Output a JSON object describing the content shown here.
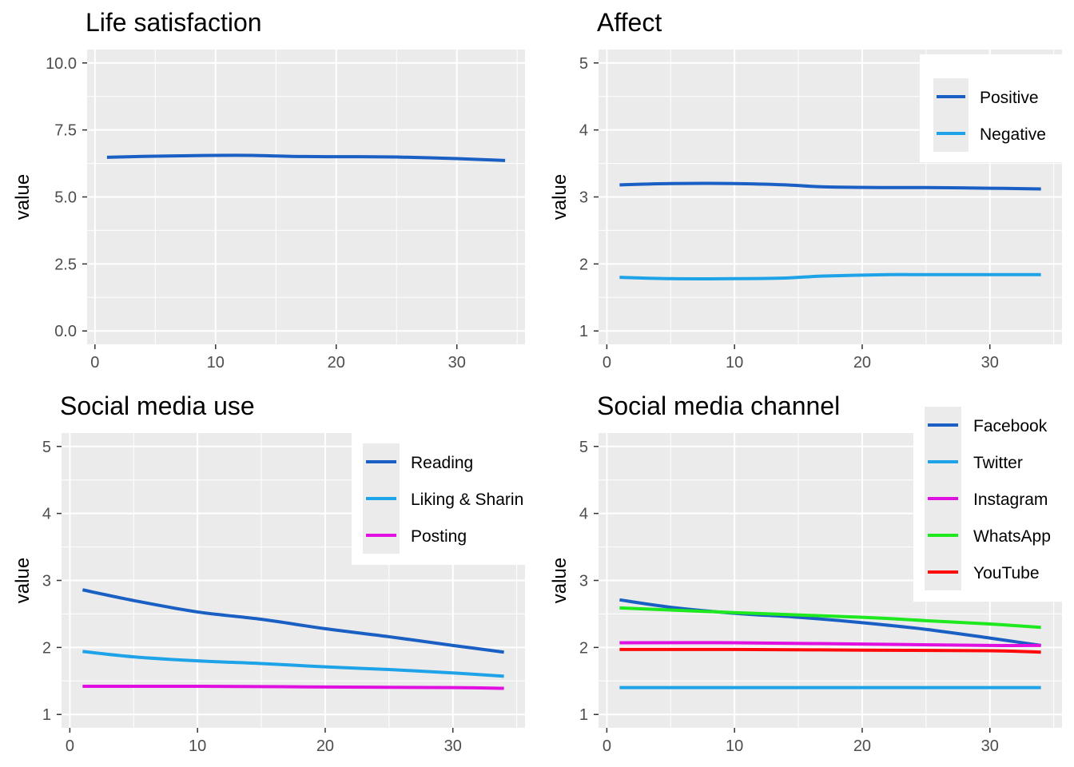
{
  "chart_data": [
    {
      "type": "line",
      "title": "Life satisfaction",
      "xlabel": "",
      "ylabel": "value",
      "xlim": [
        -0.65,
        35.65
      ],
      "ylim": [
        -0.5,
        10.5
      ],
      "xticks": [
        0,
        10,
        20,
        30
      ],
      "xtick_labels": [
        "0",
        "10",
        "20",
        "30"
      ],
      "yticks": [
        0,
        2.5,
        5,
        7.5,
        10
      ],
      "ytick_labels": [
        "0.0",
        "2.5",
        "5.0",
        "7.5",
        "10.0"
      ],
      "grid": true,
      "legend": "none",
      "series": [
        {
          "color": "#1a5fc3",
          "points": [
            [
              1,
              6.48
            ],
            [
              5,
              6.52
            ],
            [
              10,
              6.55
            ],
            [
              13,
              6.55
            ],
            [
              17,
              6.51
            ],
            [
              22,
              6.5
            ],
            [
              25,
              6.49
            ],
            [
              30,
              6.43
            ],
            [
              34,
              6.36
            ]
          ]
        }
      ]
    },
    {
      "type": "line",
      "title": "Affect",
      "xlabel": "",
      "ylabel": "value",
      "xlim": [
        -0.65,
        35.65
      ],
      "ylim": [
        0.8,
        5.2
      ],
      "xticks": [
        0,
        10,
        20,
        30
      ],
      "xtick_labels": [
        "0",
        "10",
        "20",
        "30"
      ],
      "yticks": [
        1,
        2,
        3,
        4,
        5
      ],
      "ytick_labels": [
        "1",
        "2",
        "3",
        "4",
        "5"
      ],
      "grid": true,
      "legend": "top-right",
      "series": [
        {
          "name": "Positive",
          "color": "#1a5fc3",
          "points": [
            [
              1,
              3.18
            ],
            [
              5,
              3.2
            ],
            [
              10,
              3.2
            ],
            [
              14,
              3.18
            ],
            [
              17,
              3.15
            ],
            [
              22,
              3.14
            ],
            [
              25,
              3.14
            ],
            [
              30,
              3.13
            ],
            [
              34,
              3.12
            ]
          ]
        },
        {
          "name": "Negative",
          "color": "#1ea3e8",
          "points": [
            [
              1,
              1.8
            ],
            [
              5,
              1.78
            ],
            [
              10,
              1.78
            ],
            [
              14,
              1.79
            ],
            [
              17,
              1.82
            ],
            [
              22,
              1.84
            ],
            [
              25,
              1.84
            ],
            [
              30,
              1.84
            ],
            [
              34,
              1.84
            ]
          ]
        }
      ]
    },
    {
      "type": "line",
      "title": "Social media use",
      "xlabel": "",
      "ylabel": "value",
      "xlim": [
        -0.65,
        35.65
      ],
      "ylim": [
        0.8,
        5.2
      ],
      "xticks": [
        0,
        10,
        20,
        30
      ],
      "xtick_labels": [
        "0",
        "10",
        "20",
        "30"
      ],
      "yticks": [
        1,
        2,
        3,
        4,
        5
      ],
      "ytick_labels": [
        "1",
        "2",
        "3",
        "4",
        "5"
      ],
      "grid": true,
      "legend": "top-right",
      "series": [
        {
          "name": "Reading",
          "color": "#1a5fc3",
          "points": [
            [
              1,
              2.86
            ],
            [
              5,
              2.7
            ],
            [
              10,
              2.53
            ],
            [
              15,
              2.42
            ],
            [
              20,
              2.28
            ],
            [
              25,
              2.16
            ],
            [
              30,
              2.03
            ],
            [
              34,
              1.93
            ]
          ]
        },
        {
          "name": "Liking & Sharin",
          "color": "#1ea3e8",
          "points": [
            [
              1,
              1.94
            ],
            [
              5,
              1.86
            ],
            [
              10,
              1.8
            ],
            [
              15,
              1.76
            ],
            [
              20,
              1.71
            ],
            [
              25,
              1.67
            ],
            [
              30,
              1.62
            ],
            [
              34,
              1.57
            ]
          ]
        },
        {
          "name": "Posting",
          "color": "#e010e0",
          "points": [
            [
              1,
              1.42
            ],
            [
              10,
              1.42
            ],
            [
              20,
              1.41
            ],
            [
              30,
              1.4
            ],
            [
              34,
              1.39
            ]
          ]
        }
      ]
    },
    {
      "type": "line",
      "title": "Social media channel",
      "xlabel": "",
      "ylabel": "value",
      "xlim": [
        -0.65,
        35.65
      ],
      "ylim": [
        0.8,
        5.2
      ],
      "xticks": [
        0,
        10,
        20,
        30
      ],
      "xtick_labels": [
        "0",
        "10",
        "20",
        "30"
      ],
      "yticks": [
        1,
        2,
        3,
        4,
        5
      ],
      "ytick_labels": [
        "1",
        "2",
        "3",
        "4",
        "5"
      ],
      "grid": true,
      "legend": "top-right",
      "series": [
        {
          "name": "Facebook",
          "color": "#1a5fc3",
          "points": [
            [
              1,
              2.71
            ],
            [
              5,
              2.6
            ],
            [
              10,
              2.51
            ],
            [
              15,
              2.45
            ],
            [
              20,
              2.37
            ],
            [
              25,
              2.27
            ],
            [
              30,
              2.14
            ],
            [
              34,
              2.03
            ]
          ]
        },
        {
          "name": "Twitter",
          "color": "#1ea3e8",
          "points": [
            [
              1,
              1.4
            ],
            [
              10,
              1.4
            ],
            [
              20,
              1.4
            ],
            [
              30,
              1.4
            ],
            [
              34,
              1.4
            ]
          ]
        },
        {
          "name": "Instagram",
          "color": "#e010e0",
          "points": [
            [
              1,
              2.07
            ],
            [
              10,
              2.07
            ],
            [
              20,
              2.05
            ],
            [
              30,
              2.03
            ],
            [
              34,
              2.03
            ]
          ]
        },
        {
          "name": "WhatsApp",
          "color": "#1ee81e",
          "points": [
            [
              1,
              2.59
            ],
            [
              10,
              2.52
            ],
            [
              20,
              2.45
            ],
            [
              25,
              2.4
            ],
            [
              30,
              2.35
            ],
            [
              34,
              2.3
            ]
          ]
        },
        {
          "name": "YouTube",
          "color": "#ff0a0a",
          "points": [
            [
              1,
              1.97
            ],
            [
              10,
              1.97
            ],
            [
              20,
              1.96
            ],
            [
              30,
              1.95
            ],
            [
              34,
              1.93
            ]
          ]
        }
      ]
    }
  ]
}
